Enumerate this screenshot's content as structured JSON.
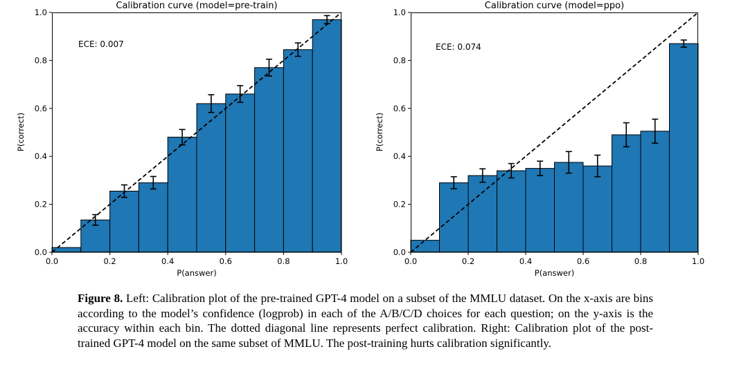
{
  "page": {
    "background": "#ffffff"
  },
  "caption": {
    "label": "Figure 8.",
    "text": " Left: Calibration plot of the pre-trained GPT-4 model on a subset of the MMLU dataset. On the x-axis are bins according to the model’s confidence (logprob) in each of the A/B/C/D choices for each question; on the y-axis is the accuracy within each bin. The dotted diagonal line represents perfect calibration. Right: Calibration plot of the post-trained GPT-4 model on the same subset of MMLU. The post-training hurts calibration significantly."
  },
  "chart_data": [
    {
      "type": "bar",
      "title": "Calibration curve (model=pre-train)",
      "annotation": "ECE: 0.007",
      "xlabel": "P(answer)",
      "ylabel": "P(correct)",
      "xlim": [
        0.0,
        1.0
      ],
      "ylim": [
        0.0,
        1.0
      ],
      "xticks": [
        "0.0",
        "0.2",
        "0.4",
        "0.6",
        "0.8",
        "1.0"
      ],
      "yticks": [
        "0.0",
        "0.2",
        "0.4",
        "0.6",
        "0.8",
        "1.0"
      ],
      "bin_edges": [
        0.0,
        0.1,
        0.2,
        0.3,
        0.4,
        0.5,
        0.6,
        0.7,
        0.8,
        0.9,
        1.0
      ],
      "values": [
        0.02,
        0.135,
        0.255,
        0.29,
        0.48,
        0.62,
        0.66,
        0.77,
        0.845,
        0.97
      ],
      "errors": [
        0,
        0.022,
        0.026,
        0.026,
        0.032,
        0.037,
        0.035,
        0.035,
        0.028,
        0.017
      ],
      "bar_color": "#1f77b4",
      "edge_color": "#000000",
      "diagonal_line": "dashed y=x (perfect calibration)",
      "grid": false,
      "legend": null
    },
    {
      "type": "bar",
      "title": "Calibration curve (model=ppo)",
      "annotation": "ECE: 0.074",
      "xlabel": "P(answer)",
      "ylabel": "P(correct)",
      "xlim": [
        0.0,
        1.0
      ],
      "ylim": [
        0.0,
        1.0
      ],
      "xticks": [
        "0.0",
        "0.2",
        "0.4",
        "0.6",
        "0.8",
        "1.0"
      ],
      "yticks": [
        "0.0",
        "0.2",
        "0.4",
        "0.6",
        "0.8",
        "1.0"
      ],
      "bin_edges": [
        0.0,
        0.1,
        0.2,
        0.3,
        0.4,
        0.5,
        0.6,
        0.7,
        0.8,
        0.9,
        1.0
      ],
      "values": [
        0.05,
        0.29,
        0.32,
        0.34,
        0.35,
        0.375,
        0.36,
        0.49,
        0.505,
        0.87
      ],
      "errors": [
        0,
        0.025,
        0.028,
        0.03,
        0.03,
        0.045,
        0.045,
        0.05,
        0.05,
        0.015
      ],
      "bar_color": "#1f77b4",
      "edge_color": "#000000",
      "diagonal_line": "dashed y=x (perfect calibration)",
      "grid": false,
      "legend": null
    }
  ]
}
